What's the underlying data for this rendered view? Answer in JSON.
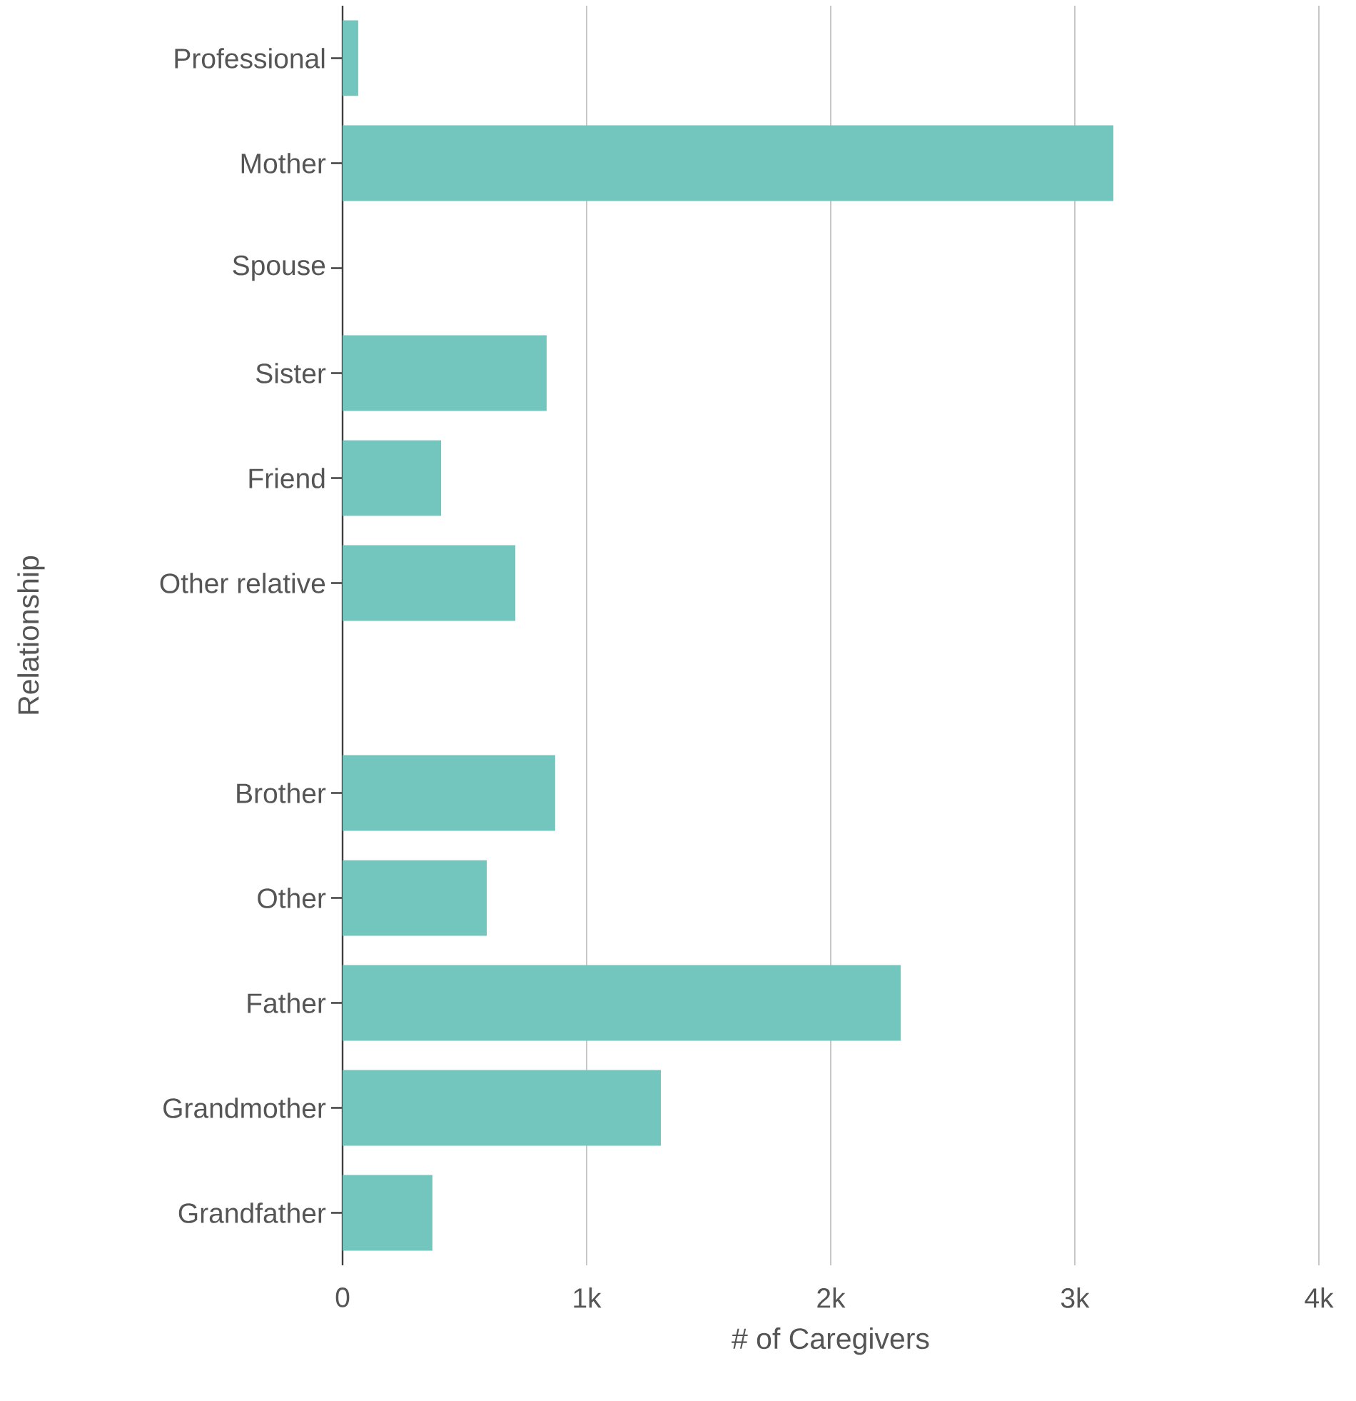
{
  "chart_data": {
    "type": "bar",
    "orientation": "horizontal",
    "categories": [
      "Professional",
      "Mother",
      "Spouse",
      "Sister",
      "Friend",
      "Other relative",
      null,
      "Brother",
      "Other",
      "Father",
      "Grandmother",
      "Grandfather"
    ],
    "values": [
      64,
      3158,
      null,
      836,
      404,
      708,
      null,
      871,
      591,
      2287,
      1304,
      368
    ],
    "color": "#72c6bd",
    "xlabel": "# of Caregivers",
    "ylabel": "Relationship",
    "xlim": [
      0,
      4000
    ],
    "xticks": [
      0,
      {
        "value": 1000,
        "label": "1k"
      },
      {
        "value": 2000,
        "label": "2k"
      },
      {
        "value": 3000,
        "label": "3k"
      },
      {
        "value": 4000,
        "label": "4k"
      }
    ],
    "grid": "x"
  }
}
